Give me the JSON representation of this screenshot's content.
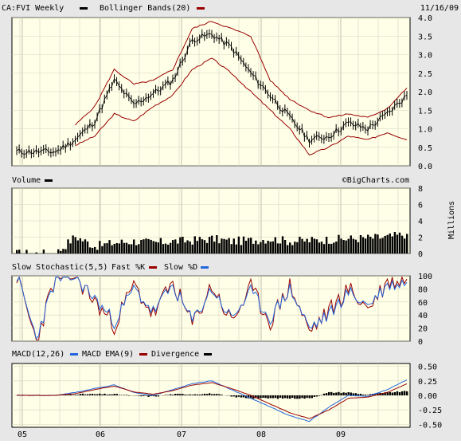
{
  "header": {
    "symbol_label": "CA:FVI Weekly",
    "overlay_label": "Bollinger Bands(20)",
    "date": "11/16/09",
    "watermark": "©BigCharts.com"
  },
  "colors": {
    "background": "#e7e7e7",
    "plot_bg": "#ffffe8",
    "grid": "#d4d4c0",
    "price": "#000000",
    "bollinger": "#990000",
    "fast_k": "#990000",
    "slow_d": "#2266dd",
    "macd": "#2266dd",
    "ema": "#990000",
    "divergence": "#000000"
  },
  "x_axis": {
    "tick_labels": [
      "05",
      "06",
      "07",
      "08",
      "09"
    ]
  },
  "price_panel": {
    "y_ticks": [
      "4.0",
      "3.5",
      "3.0",
      "2.5",
      "2.0",
      "1.5",
      "1.0",
      "0.5",
      "0.0"
    ]
  },
  "volume_panel": {
    "title": "Volume",
    "y_ticks": [
      "8",
      "6",
      "4",
      "2",
      "0"
    ],
    "unit_label": "Millions"
  },
  "stochastic_panel": {
    "title": "Slow Stochastic(5,5)",
    "fast_label": "Fast %K",
    "slow_label": "Slow %D",
    "y_ticks": [
      "100",
      "80",
      "60",
      "40",
      "20",
      "0"
    ]
  },
  "macd_panel": {
    "title": "MACD(12,26)",
    "macd_label": "MACD",
    "ema_label": "EMA(9)",
    "divergence_label": "Divergence",
    "y_ticks": [
      "0.50",
      "0.25",
      "0.00",
      "-0.25",
      "-0.50"
    ]
  },
  "chart_data": [
    {
      "type": "line",
      "title": "CA:FVI Weekly",
      "x": [
        "05",
        "05.25",
        "05.5",
        "05.75",
        "06",
        "06.25",
        "06.5",
        "06.75",
        "07",
        "07.25",
        "07.5",
        "07.75",
        "08",
        "08.25",
        "08.5",
        "08.75",
        "09",
        "09.25",
        "09.5",
        "09.75",
        "09.9"
      ],
      "ylim": [
        0,
        4.0
      ],
      "series": [
        {
          "name": "CA:FVI Weekly",
          "values": [
            0.38,
            0.38,
            0.38,
            0.7,
            1.2,
            2.3,
            1.65,
            1.95,
            2.3,
            3.4,
            3.55,
            3.2,
            2.5,
            1.9,
            1.3,
            0.7,
            0.8,
            1.15,
            1.0,
            1.4,
            1.9
          ]
        },
        {
          "name": "Bollinger Bands(20)",
          "values": [
            null,
            null,
            null,
            0.55,
            0.8,
            1.4,
            1.2,
            1.6,
            1.9,
            2.6,
            2.9,
            2.5,
            2.0,
            1.5,
            1.0,
            0.3,
            0.5,
            0.8,
            0.7,
            0.9,
            0.7
          ]
        },
        {
          "name": "Bollinger Bands(20)",
          "values": [
            null,
            null,
            null,
            1.1,
            1.6,
            2.6,
            2.2,
            2.3,
            2.6,
            3.7,
            3.9,
            3.7,
            3.5,
            2.3,
            1.8,
            1.5,
            1.3,
            1.4,
            1.3,
            1.55,
            2.1
          ]
        }
      ]
    },
    {
      "type": "bar",
      "title": "Volume",
      "x": [
        "05",
        "05.25",
        "05.5",
        "05.75",
        "06",
        "06.25",
        "06.5",
        "06.75",
        "07",
        "07.25",
        "07.5",
        "07.75",
        "08",
        "08.25",
        "08.5",
        "08.75",
        "09",
        "09.25",
        "09.5",
        "09.75",
        "09.9"
      ],
      "ylabel": "Millions",
      "ylim": [
        0,
        8
      ],
      "series": [
        {
          "name": "Volume",
          "values": [
            0,
            0,
            0,
            2.1,
            0.9,
            1.3,
            1.5,
            1.3,
            1.5,
            1.6,
            1.8,
            1.5,
            1.6,
            1.8,
            1.5,
            1.6,
            1.7,
            1.8,
            1.9,
            2.0,
            2.4
          ]
        }
      ]
    },
    {
      "type": "line",
      "title": "Slow Stochastic(5,5)",
      "x": [
        "05",
        "05.25",
        "05.5",
        "05.75",
        "06",
        "06.25",
        "06.5",
        "06.75",
        "07",
        "07.25",
        "07.5",
        "07.75",
        "08",
        "08.25",
        "08.5",
        "08.75",
        "09",
        "09.25",
        "09.5",
        "09.75",
        "09.9"
      ],
      "ylim": [
        0,
        100
      ],
      "series": [
        {
          "name": "Fast %K",
          "values": [
            100,
            0,
            100,
            100,
            60,
            25,
            85,
            40,
            90,
            25,
            85,
            30,
            80,
            30,
            85,
            15,
            45,
            80,
            50,
            90,
            95
          ]
        },
        {
          "name": "Slow %D",
          "values": [
            100,
            5,
            95,
            98,
            65,
            30,
            80,
            45,
            85,
            30,
            80,
            35,
            75,
            35,
            80,
            20,
            40,
            75,
            55,
            85,
            90
          ]
        }
      ]
    },
    {
      "type": "line",
      "title": "MACD(12,26)",
      "x": [
        "05",
        "05.25",
        "05.5",
        "05.75",
        "06",
        "06.25",
        "06.5",
        "06.75",
        "07",
        "07.25",
        "07.5",
        "07.75",
        "08",
        "08.25",
        "08.5",
        "08.75",
        "09",
        "09.25",
        "09.5",
        "09.75",
        "09.9"
      ],
      "ylim": [
        -0.55,
        0.55
      ],
      "series": [
        {
          "name": "MACD",
          "values": [
            0.0,
            0.0,
            0.0,
            0.05,
            0.12,
            0.18,
            0.05,
            0.0,
            0.1,
            0.2,
            0.25,
            0.1,
            -0.05,
            -0.2,
            -0.35,
            -0.45,
            -0.2,
            0.0,
            -0.02,
            0.1,
            0.27
          ]
        },
        {
          "name": "EMA(9)",
          "values": [
            0.0,
            0.0,
            0.0,
            0.03,
            0.1,
            0.16,
            0.06,
            0.02,
            0.08,
            0.18,
            0.22,
            0.12,
            0.0,
            -0.15,
            -0.3,
            -0.4,
            -0.25,
            -0.05,
            -0.03,
            0.05,
            0.2
          ]
        },
        {
          "name": "Divergence",
          "values": [
            0.0,
            0.0,
            0.0,
            0.02,
            0.02,
            0.02,
            -0.01,
            -0.02,
            0.02,
            0.02,
            0.03,
            -0.02,
            -0.05,
            -0.05,
            -0.05,
            -0.05,
            0.05,
            0.05,
            0.01,
            0.05,
            0.07
          ]
        }
      ]
    }
  ]
}
